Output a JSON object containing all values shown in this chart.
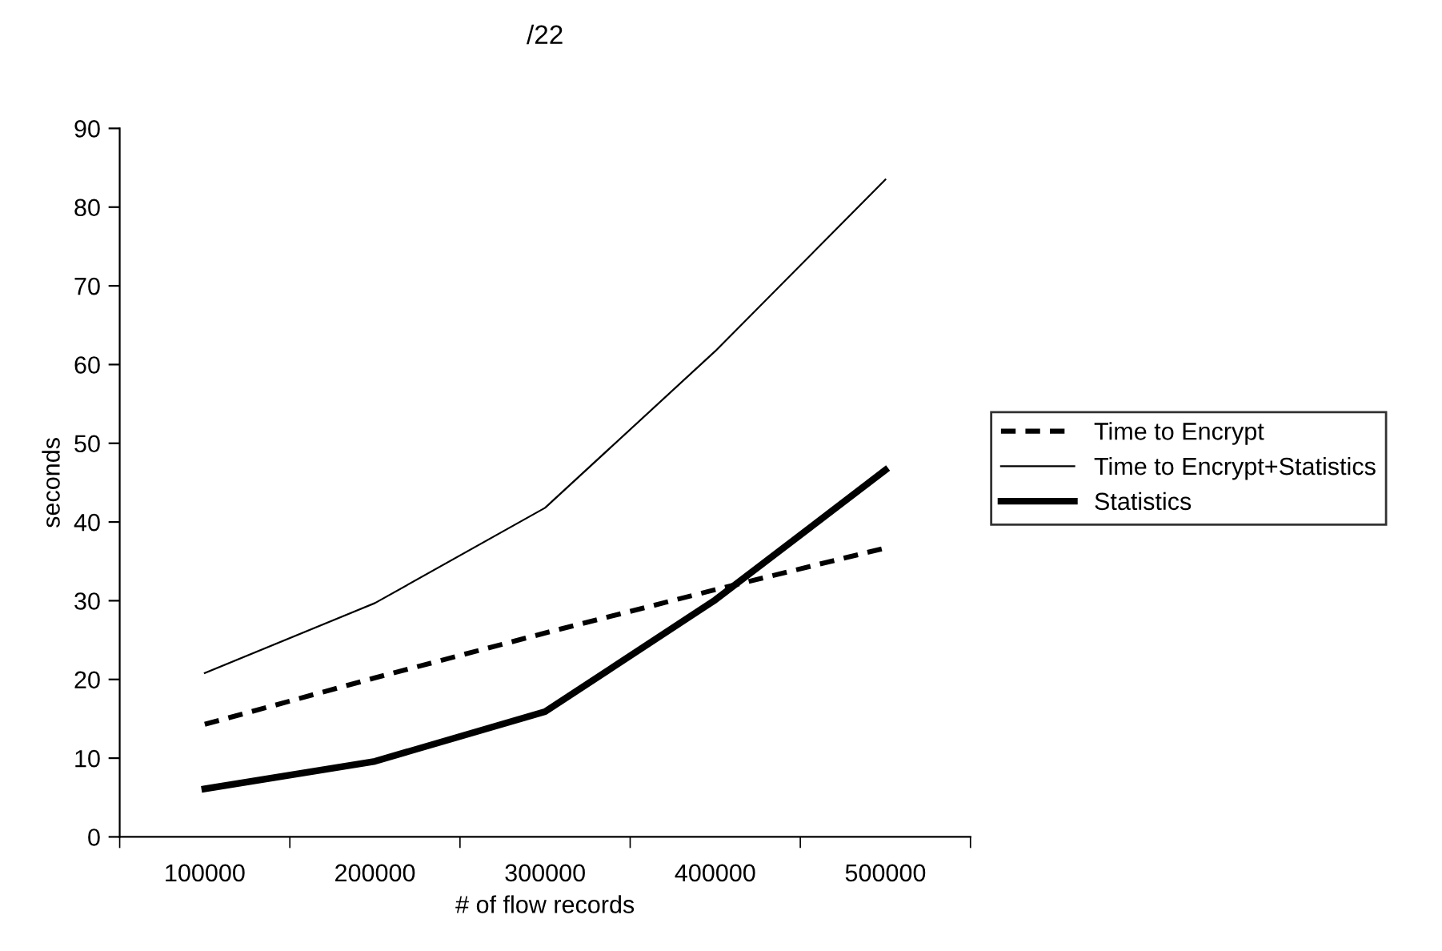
{
  "chart_data": {
    "type": "line",
    "title": "/22",
    "xlabel": "# of flow records",
    "ylabel": "seconds",
    "categories": [
      "100000",
      "200000",
      "300000",
      "400000",
      "500000"
    ],
    "series": [
      {
        "name": "Time to Encrypt",
        "color": "#000000",
        "line_style": "dashed",
        "values": [
          14.3,
          20.2,
          25.9,
          31.4,
          36.7
        ]
      },
      {
        "name": "Time to Encrypt+Statistics",
        "color": "#000000",
        "line_style": "solid",
        "values": [
          20.8,
          29.7,
          41.8,
          61.7,
          83.5
        ]
      },
      {
        "name": "Statistics",
        "color": "#000000",
        "line_style": "solid",
        "values": [
          6.1,
          9.6,
          15.9,
          30.1,
          46.6
        ]
      }
    ],
    "ylim": [
      0,
      90
    ],
    "yticks": [
      0,
      10,
      20,
      30,
      40,
      50,
      60,
      70,
      80,
      90
    ],
    "grid": false,
    "legend": "right",
    "marker": "none"
  }
}
